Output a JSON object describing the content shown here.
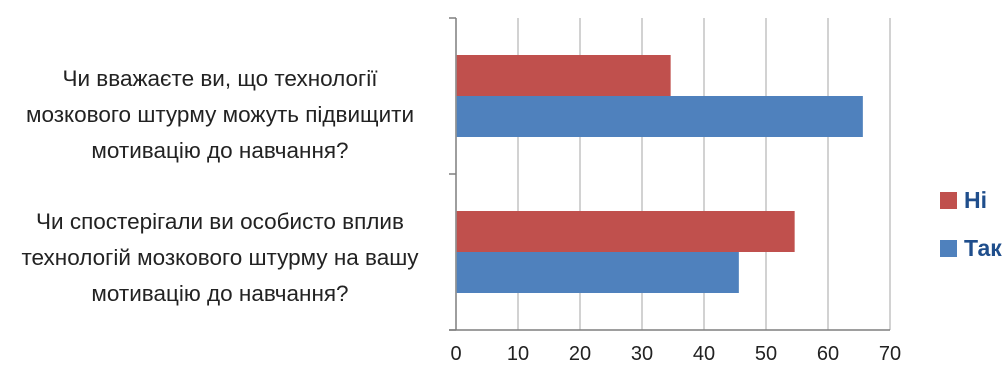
{
  "chart_data": {
    "type": "bar",
    "orientation": "horizontal",
    "categories": [
      [
        "Чи вважаєте ви, що технології",
        "мозкового штурму можуть підвищити",
        "мотивацію до навчання?"
      ],
      [
        "Чи спостерігали ви особисто вплив",
        "технологій мозкового штурму на вашу",
        "мотивацію до навчання?"
      ]
    ],
    "series": [
      {
        "name": "Ні",
        "color": "#c0504d",
        "values": [
          34.5,
          54.5
        ]
      },
      {
        "name": "Так",
        "color": "#4f81bd",
        "values": [
          65.5,
          45.5
        ]
      }
    ],
    "xlim": [
      0,
      70
    ],
    "xticks": [
      "0",
      "10",
      "20",
      "30",
      "40",
      "50",
      "60",
      "70"
    ],
    "grid": true,
    "legend_position": "right"
  }
}
